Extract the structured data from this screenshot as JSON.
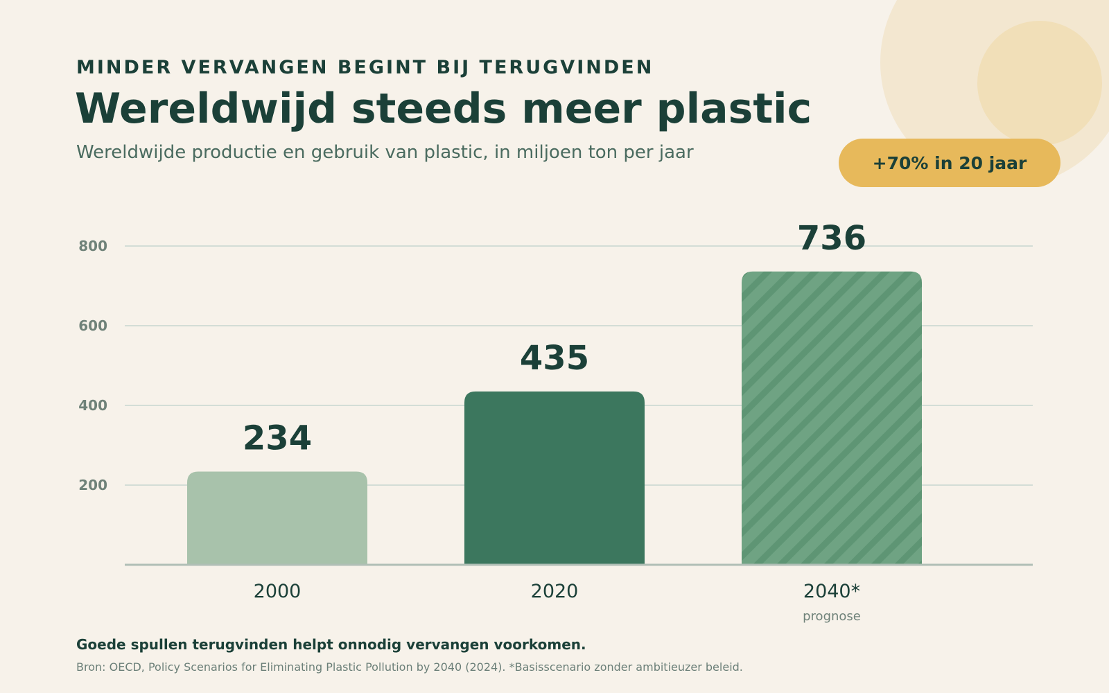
{
  "header": {
    "kicker": "MINDER VERVANGEN BEGINT BIJ TERUGVINDEN",
    "title": "Wereldwijd steeds meer plastic",
    "subtitle": "Wereldwijde productie en gebruik van plastic, in miljoen ton per jaar"
  },
  "badge": {
    "label": "+70% in 20 jaar"
  },
  "chart_data": {
    "type": "bar",
    "title": "Wereldwijd steeds meer plastic",
    "subtitle": "Wereldwijde productie en gebruik van plastic, in miljoen ton per jaar",
    "categories": [
      "2000",
      "2020",
      "2040*"
    ],
    "category_notes": [
      "",
      "",
      "prognose"
    ],
    "values": [
      234,
      435,
      736
    ],
    "value_labels": [
      "234",
      "435",
      "736"
    ],
    "bar_colors": [
      "#a8c2ab",
      "#3c775e",
      "#6fa383"
    ],
    "bar_styles": [
      "solid",
      "solid",
      "hatched"
    ],
    "yticks": [
      200,
      400,
      600,
      800
    ],
    "ytick_labels": [
      "200",
      "400",
      "600",
      "800"
    ],
    "ylim": [
      0,
      800
    ],
    "grid": true,
    "xlabel": "",
    "ylabel": ""
  },
  "footer": {
    "message": "Goede spullen terugvinden helpt onnodig vervangen voorkomen.",
    "source": "Bron: OECD, Policy Scenarios for Eliminating Plastic Pollution by 2040 (2024). *Basisscenario zonder ambitieuzer beleid."
  },
  "colors": {
    "background": "#f7f2ea",
    "primary_text": "#1b4038",
    "accent": "#e7b95b",
    "grid": "#d3ddd6",
    "axis": "#b0bfb6"
  }
}
